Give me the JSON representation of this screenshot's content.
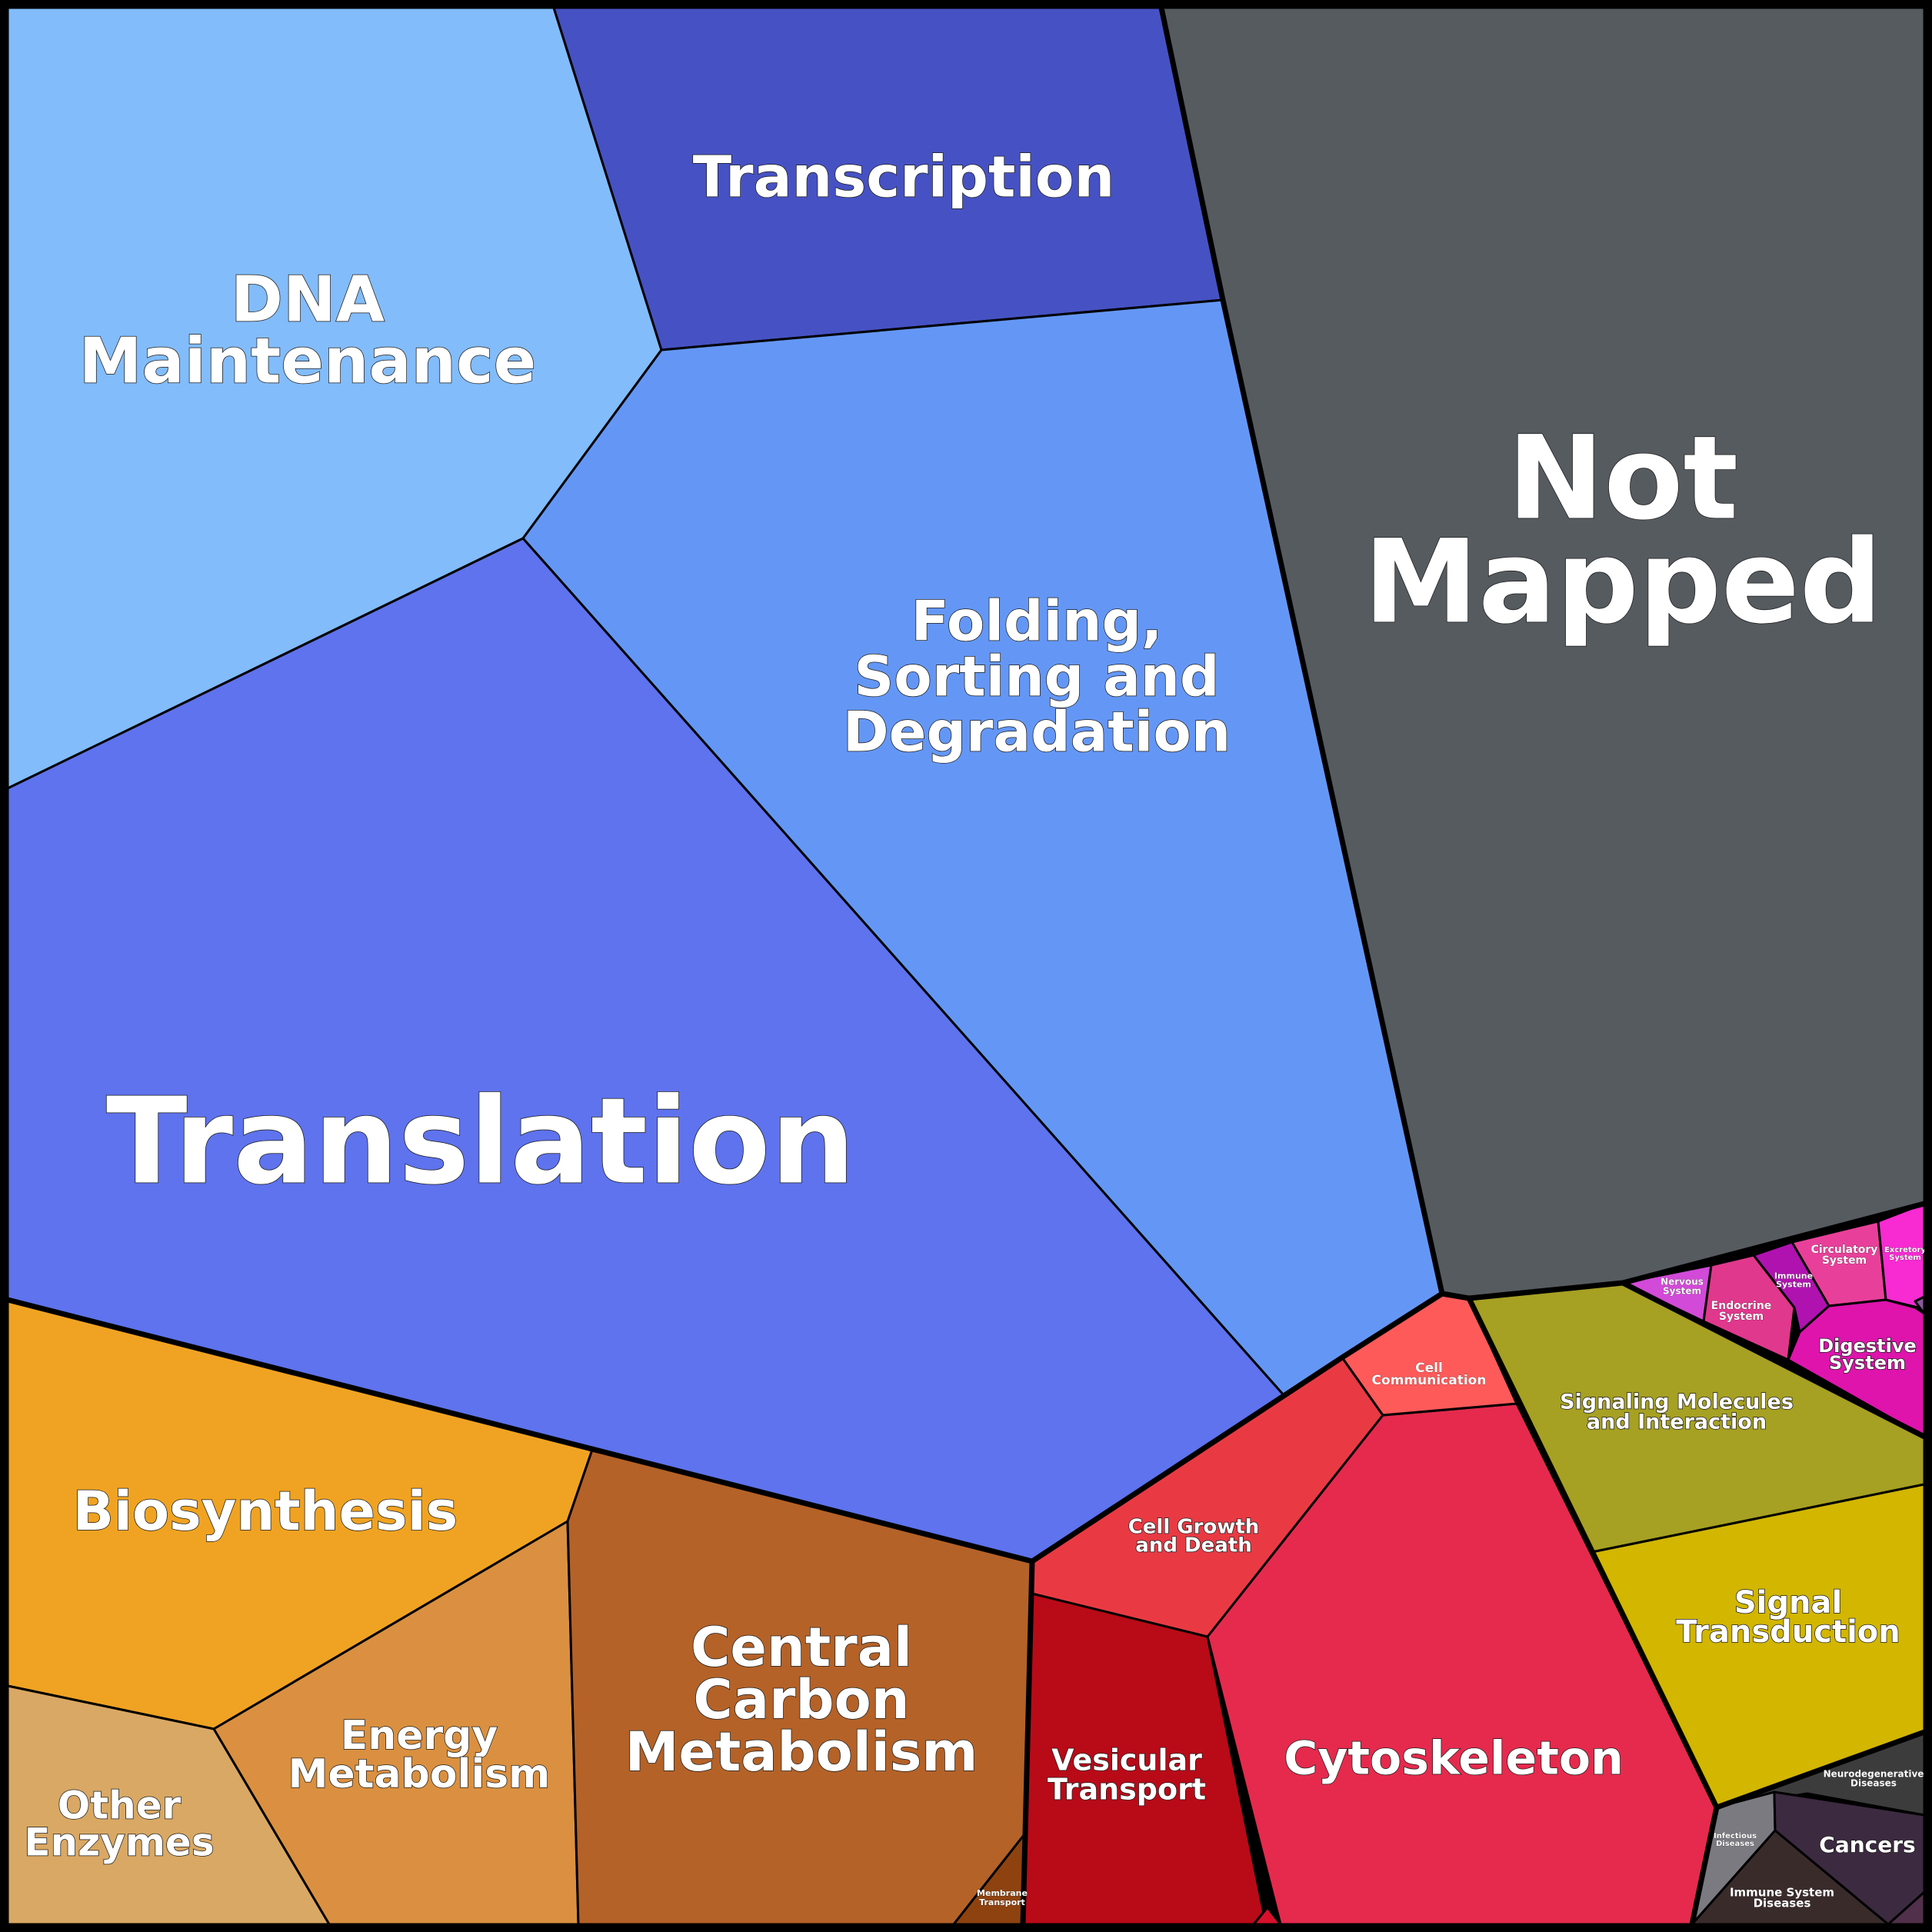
{
  "treemap": {
    "cells": [
      {
        "id": "dna-maintenance",
        "lines": [
          "DNA",
          "Maintenance"
        ],
        "color": "#82bcfa"
      },
      {
        "id": "transcription",
        "lines": [
          "Transcription"
        ],
        "color": "#4652c3"
      },
      {
        "id": "folding-sorting-degradation",
        "lines": [
          "Folding,",
          "Sorting and",
          "Degradation"
        ],
        "color": "#6497f5"
      },
      {
        "id": "translation",
        "lines": [
          "Translation"
        ],
        "color": "#5e73ed"
      },
      {
        "id": "not-mapped",
        "lines": [
          "Not",
          "Mapped"
        ],
        "color": "#565b60"
      },
      {
        "id": "biosynthesis",
        "lines": [
          "Biosynthesis"
        ],
        "color": "#f0a322"
      },
      {
        "id": "energy-metabolism",
        "lines": [
          "Energy",
          "Metabolism"
        ],
        "color": "#da9040"
      },
      {
        "id": "other-enzymes",
        "lines": [
          "Other",
          "Enzymes"
        ],
        "color": "#d9a864"
      },
      {
        "id": "central-carbon-metabolism",
        "lines": [
          "Central",
          "Carbon",
          "Metabolism"
        ],
        "color": "#b46228"
      },
      {
        "id": "membrane-transport",
        "lines": [
          "Membrane",
          "Transport"
        ],
        "color": "#8e4210"
      },
      {
        "id": "vesicular-transport",
        "lines": [
          "Vesicular",
          "Transport"
        ],
        "color": "#b90a18"
      },
      {
        "id": "cytoskeleton",
        "lines": [
          "Cytoskeleton"
        ],
        "color": "#e52a4d"
      },
      {
        "id": "cell-growth-and-death",
        "lines": [
          "Cell Growth",
          "and Death"
        ],
        "color": "#e93a44"
      },
      {
        "id": "cell-communication",
        "lines": [
          "Cell",
          "Communication"
        ],
        "color": "#fe5a5a"
      },
      {
        "id": "cell-motility",
        "lines": [],
        "color": "#d8102c"
      },
      {
        "id": "signaling-molecules",
        "lines": [
          "Signaling Molecules",
          "and Interaction"
        ],
        "color": "#a6a023"
      },
      {
        "id": "signal-transduction",
        "lines": [
          "Signal",
          "Transduction"
        ],
        "color": "#d2b600"
      },
      {
        "id": "nervous-system",
        "lines": [
          "Nervous",
          "System"
        ],
        "color": "#d24ad8"
      },
      {
        "id": "small-system",
        "lines": [],
        "color": "#c022b0"
      },
      {
        "id": "endocrine-system",
        "lines": [
          "Endocrine",
          "System"
        ],
        "color": "#e0388c"
      },
      {
        "id": "immune-system",
        "lines": [
          "Immune",
          "System"
        ],
        "color": "#b012b0"
      },
      {
        "id": "circulatory-system",
        "lines": [
          "Circulatory",
          "System"
        ],
        "color": "#e8409a"
      },
      {
        "id": "excretory-system",
        "lines": [
          "Excretory",
          "System"
        ],
        "color": "#f82ad2"
      },
      {
        "id": "digestive-system",
        "lines": [
          "Digestive",
          "System"
        ],
        "color": "#de14ac"
      },
      {
        "id": "sliver-system",
        "lines": [],
        "color": "#8a5a9a"
      },
      {
        "id": "neurodegenerative-diseases",
        "lines": [
          "Neurodegenerative",
          "Diseases"
        ],
        "color": "#3c3c3c"
      },
      {
        "id": "infectious-diseases",
        "lines": [
          "Infectious",
          "Diseases"
        ],
        "color": "#7a7a80"
      },
      {
        "id": "cancers",
        "lines": [
          "Cancers"
        ],
        "color": "#3c2a40"
      },
      {
        "id": "immune-system-diseases",
        "lines": [
          "Immune System",
          "Diseases"
        ],
        "color": "#3a2b2b"
      },
      {
        "id": "cardiovascular-diseases",
        "lines": [],
        "color": "#50304a"
      }
    ]
  }
}
